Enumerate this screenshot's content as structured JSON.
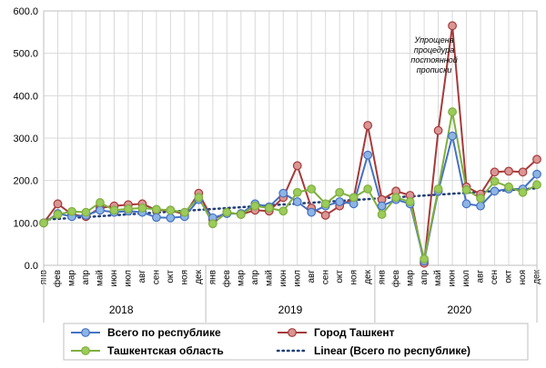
{
  "chart_data": {
    "type": "line",
    "categories": [
      "янв",
      "фев",
      "мар",
      "апр",
      "май",
      "июн",
      "июл",
      "авг",
      "сен",
      "окт",
      "ноя",
      "дек",
      "янв",
      "фев",
      "мар",
      "апр",
      "май",
      "июн",
      "июл",
      "авг",
      "сен",
      "окт",
      "ноя",
      "дек",
      "янв",
      "фев",
      "мар",
      "апр",
      "май",
      "июн",
      "июл",
      "авг",
      "сен",
      "окт",
      "ноя",
      "дек"
    ],
    "years": [
      "2018",
      "2019",
      "2020"
    ],
    "ylim": [
      0,
      600
    ],
    "yticks": [
      "0.0",
      "100.0",
      "200.0",
      "300.0",
      "400.0",
      "500.0",
      "600.0"
    ],
    "grid": true,
    "legend_position": "bottom",
    "series": [
      {
        "name": "Всего по республике",
        "color": "#4472C4",
        "marker_fill": "#8EB4E3",
        "values": [
          100,
          122,
          115,
          118,
          130,
          125,
          128,
          125,
          113,
          112,
          115,
          155,
          112,
          122,
          122,
          145,
          138,
          170,
          150,
          125,
          140,
          150,
          145,
          260,
          140,
          155,
          145,
          10,
          175,
          305,
          145,
          140,
          175,
          180,
          180,
          215
        ]
      },
      {
        "name": "Город Ташкент",
        "color": "#A63A3A",
        "marker_fill": "#D99694",
        "values": [
          100,
          145,
          120,
          115,
          135,
          140,
          143,
          145,
          130,
          130,
          120,
          170,
          108,
          125,
          120,
          130,
          128,
          160,
          235,
          135,
          118,
          140,
          158,
          330,
          155,
          175,
          165,
          5,
          318,
          565,
          185,
          168,
          220,
          222,
          220,
          250
        ]
      },
      {
        "name": "Ташкентская область",
        "color": "#7FAF3F",
        "marker_fill": "#9BCB5A",
        "values": [
          100,
          120,
          127,
          125,
          148,
          130,
          133,
          135,
          132,
          130,
          125,
          160,
          98,
          125,
          120,
          140,
          135,
          128,
          172,
          180,
          145,
          172,
          160,
          180,
          120,
          160,
          150,
          15,
          180,
          362,
          178,
          158,
          198,
          185,
          172,
          190
        ]
      }
    ],
    "trendline": {
      "name": "Linear (Всего по республике)",
      "color": "#1F3D78"
    },
    "annotation": {
      "lines": [
        "Упрощена",
        "процедура",
        "постоянной",
        "прописки"
      ],
      "near_index": 29
    }
  }
}
